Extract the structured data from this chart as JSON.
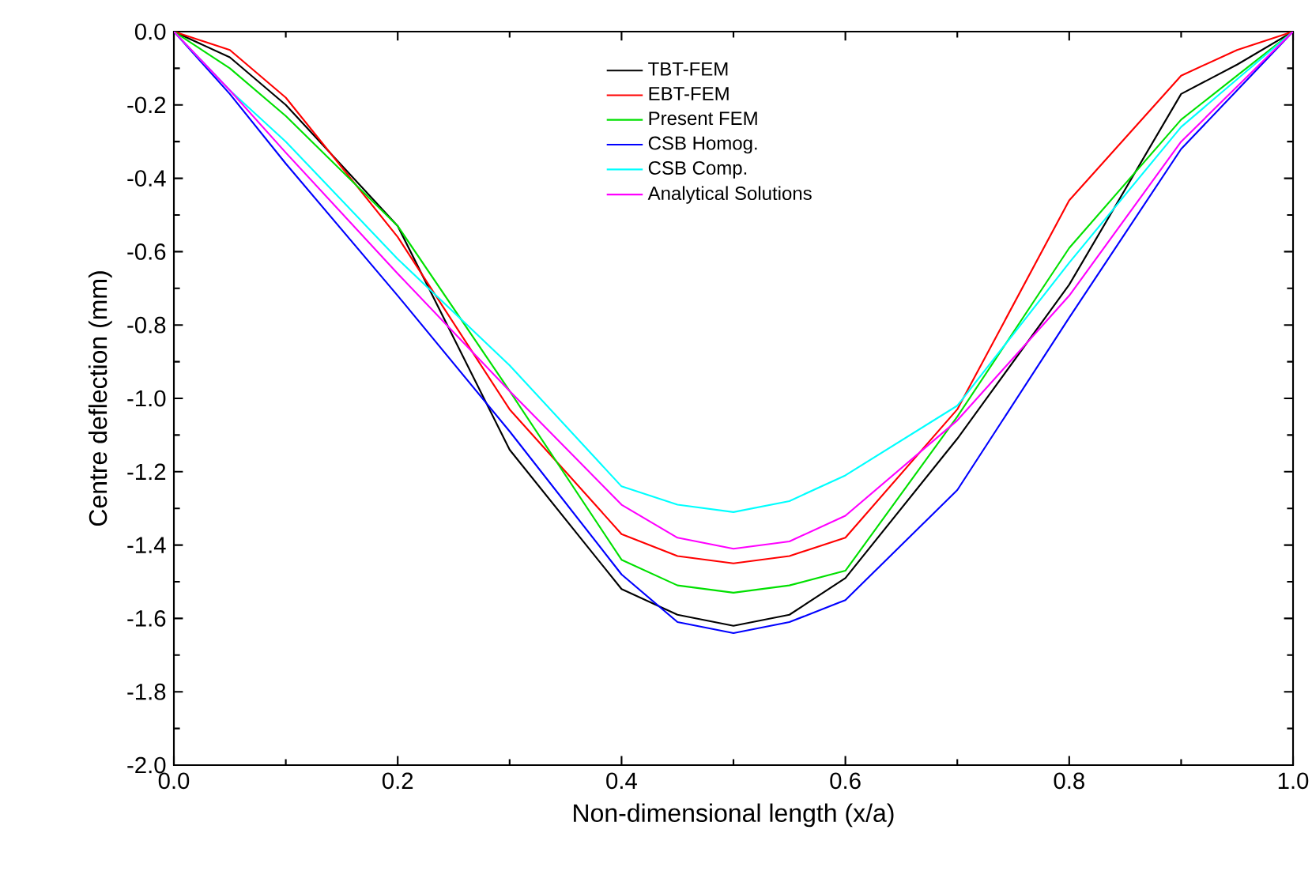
{
  "chart_data": {
    "type": "line",
    "xlabel": "Non-dimensional length (x/a)",
    "ylabel": "Centre deflection (mm)",
    "x": [
      0,
      0.05,
      0.1,
      0.2,
      0.3,
      0.4,
      0.45,
      0.5,
      0.55,
      0.6,
      0.7,
      0.8,
      0.9,
      0.95,
      1.0
    ],
    "series": [
      {
        "name": "TBT-FEM",
        "color": "#000000",
        "values": [
          0,
          -0.07,
          -0.2,
          -0.53,
          -1.14,
          -1.52,
          -1.59,
          -1.62,
          -1.59,
          -1.49,
          -1.11,
          -0.69,
          -0.17,
          -0.09,
          0
        ]
      },
      {
        "name": "EBT-FEM",
        "color": "#ff0000",
        "values": [
          0,
          -0.05,
          -0.18,
          -0.56,
          -1.03,
          -1.37,
          -1.43,
          -1.45,
          -1.43,
          -1.38,
          -1.03,
          -0.46,
          -0.12,
          -0.05,
          0
        ]
      },
      {
        "name": "Present FEM",
        "color": "#00e000",
        "values": [
          0,
          -0.1,
          -0.23,
          -0.53,
          -0.98,
          -1.44,
          -1.51,
          -1.53,
          -1.51,
          -1.47,
          -1.05,
          -0.59,
          -0.24,
          -0.12,
          0
        ]
      },
      {
        "name": "CSB Homog.",
        "color": "#0000ff",
        "values": [
          0,
          -0.17,
          -0.36,
          -0.72,
          -1.09,
          -1.48,
          -1.61,
          -1.64,
          -1.61,
          -1.55,
          -1.25,
          -0.78,
          -0.32,
          -0.16,
          0
        ]
      },
      {
        "name": "CSB Comp.",
        "color": "#00ffff",
        "values": [
          0,
          -0.16,
          -0.3,
          -0.62,
          -0.91,
          -1.24,
          -1.29,
          -1.31,
          -1.28,
          -1.21,
          -1.02,
          -0.63,
          -0.26,
          -0.13,
          0
        ]
      },
      {
        "name": "Analytical Solutions",
        "color": "#ff00ff",
        "values": [
          0,
          -0.16,
          -0.33,
          -0.66,
          -0.98,
          -1.29,
          -1.38,
          -1.41,
          -1.39,
          -1.32,
          -1.06,
          -0.72,
          -0.3,
          -0.15,
          0
        ]
      }
    ],
    "xlim": [
      0,
      1
    ],
    "ylim": [
      -2,
      0
    ],
    "xticks": [
      {
        "value": 0,
        "label": "0.0"
      },
      {
        "value": 0.2,
        "label": "0.2"
      },
      {
        "value": 0.4,
        "label": "0.4"
      },
      {
        "value": 0.6,
        "label": "0.6"
      },
      {
        "value": 0.8,
        "label": "0.8"
      },
      {
        "value": 1,
        "label": "1.0"
      }
    ],
    "yticks": [
      {
        "value": -2,
        "label": "-2.0"
      },
      {
        "value": -1.8,
        "label": "-1.8"
      },
      {
        "value": -1.6,
        "label": "-1.6"
      },
      {
        "value": -1.4,
        "label": "-1.4"
      },
      {
        "value": -1.2,
        "label": "-1.2"
      },
      {
        "value": -1,
        "label": "-1.0"
      },
      {
        "value": -0.8,
        "label": "-0.8"
      },
      {
        "value": -0.6,
        "label": "-0.6"
      },
      {
        "value": -0.4,
        "label": "-0.4"
      },
      {
        "value": -0.2,
        "label": "-0.2"
      },
      {
        "value": 0,
        "label": "0.0"
      }
    ],
    "legend": "top",
    "grid": false
  }
}
